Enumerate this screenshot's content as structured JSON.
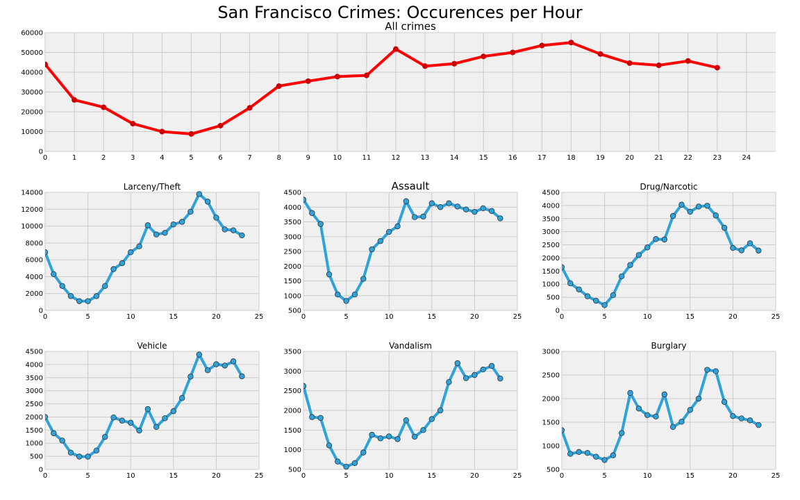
{
  "title": "San Francisco Crimes: Occurences per Hour",
  "colors": {
    "background": "#f0f0f0",
    "grid": "#cbcbcb",
    "all_crimes_line": "#ff0000",
    "all_crimes_marker": "#cc0000",
    "category_line": "#30a2da",
    "category_marker_edge": "#333333"
  },
  "chart_data": [
    {
      "type": "line",
      "title": "All crimes",
      "x": [
        0,
        1,
        2,
        3,
        4,
        5,
        6,
        7,
        8,
        9,
        10,
        11,
        12,
        13,
        14,
        15,
        16,
        17,
        18,
        19,
        20,
        21,
        22,
        23
      ],
      "values": [
        44000,
        26000,
        22300,
        14000,
        10000,
        8800,
        13000,
        22000,
        33000,
        35500,
        37800,
        38400,
        51700,
        43100,
        44300,
        48000,
        50000,
        53500,
        55000,
        49200,
        44600,
        43500,
        45700,
        42300
      ],
      "xlim": [
        0,
        25
      ],
      "ylim": [
        0,
        60000
      ],
      "xticks": [
        0,
        1,
        2,
        3,
        4,
        5,
        6,
        7,
        8,
        9,
        10,
        11,
        12,
        13,
        14,
        15,
        16,
        17,
        18,
        19,
        20,
        21,
        22,
        23,
        24
      ],
      "yticks": [
        0,
        10000,
        20000,
        30000,
        40000,
        50000,
        60000
      ],
      "grid": true
    },
    {
      "type": "line",
      "title": "Larceny/Theft",
      "x": [
        0,
        1,
        2,
        3,
        4,
        5,
        6,
        7,
        8,
        9,
        10,
        11,
        12,
        13,
        14,
        15,
        16,
        17,
        18,
        19,
        20,
        21,
        22,
        23
      ],
      "values": [
        6900,
        4300,
        2900,
        1700,
        1100,
        1100,
        1700,
        2900,
        4900,
        5600,
        6900,
        7600,
        10100,
        9000,
        9200,
        10200,
        10500,
        11700,
        13800,
        12900,
        11000,
        9600,
        9500,
        8900
      ],
      "xlim": [
        0,
        25
      ],
      "ylim": [
        0,
        14000
      ],
      "xticks": [
        0,
        5,
        10,
        15,
        20,
        25
      ],
      "yticks": [
        0,
        2000,
        4000,
        6000,
        8000,
        10000,
        12000,
        14000
      ],
      "grid": true
    },
    {
      "type": "line",
      "title": "Assault",
      "x": [
        0,
        1,
        2,
        3,
        4,
        5,
        6,
        7,
        8,
        9,
        10,
        11,
        12,
        13,
        14,
        15,
        16,
        17,
        18,
        19,
        20,
        21,
        22,
        23
      ],
      "values": [
        4250,
        3800,
        3430,
        1720,
        1040,
        820,
        1040,
        1570,
        2570,
        2850,
        3160,
        3350,
        4200,
        3660,
        3680,
        4130,
        4000,
        4130,
        4020,
        3920,
        3840,
        3960,
        3870,
        3620
      ],
      "xlim": [
        0,
        25
      ],
      "ylim": [
        500,
        4500
      ],
      "xticks": [
        0,
        5,
        10,
        15,
        20,
        25
      ],
      "yticks": [
        500,
        1000,
        1500,
        2000,
        2500,
        3000,
        3500,
        4000,
        4500
      ],
      "grid": true
    },
    {
      "type": "line",
      "title": "Drug/Narcotic",
      "x": [
        0,
        1,
        2,
        3,
        4,
        5,
        6,
        7,
        8,
        9,
        10,
        11,
        12,
        13,
        14,
        15,
        16,
        17,
        18,
        19,
        20,
        21,
        22,
        23
      ],
      "values": [
        1650,
        1030,
        800,
        540,
        370,
        200,
        580,
        1300,
        1730,
        2110,
        2400,
        2720,
        2700,
        3600,
        4030,
        3760,
        3960,
        3990,
        3620,
        3150,
        2380,
        2290,
        2560,
        2280
      ],
      "xlim": [
        0,
        25
      ],
      "ylim": [
        0,
        4500
      ],
      "xticks": [
        0,
        5,
        10,
        15,
        20,
        25
      ],
      "yticks": [
        0,
        500,
        1000,
        1500,
        2000,
        2500,
        3000,
        3500,
        4000,
        4500
      ],
      "grid": true
    },
    {
      "type": "line",
      "title": "Vehicle",
      "x": [
        0,
        1,
        2,
        3,
        4,
        5,
        6,
        7,
        8,
        9,
        10,
        11,
        12,
        13,
        14,
        15,
        16,
        17,
        18,
        19,
        20,
        21,
        22,
        23
      ],
      "values": [
        2000,
        1380,
        1100,
        640,
        490,
        490,
        720,
        1240,
        1980,
        1860,
        1780,
        1480,
        2300,
        1620,
        1950,
        2220,
        2720,
        3540,
        4380,
        3780,
        4010,
        3960,
        4120,
        3550
      ],
      "xlim": [
        0,
        25
      ],
      "ylim": [
        0,
        4500
      ],
      "xticks": [
        0,
        5,
        10,
        15,
        20,
        25
      ],
      "yticks": [
        0,
        500,
        1000,
        1500,
        2000,
        2500,
        3000,
        3500,
        4000,
        4500
      ],
      "grid": true
    },
    {
      "type": "line",
      "title": "Vandalism",
      "x": [
        0,
        1,
        2,
        3,
        4,
        5,
        6,
        7,
        8,
        9,
        10,
        11,
        12,
        13,
        14,
        15,
        16,
        17,
        18,
        19,
        20,
        21,
        22,
        23
      ],
      "values": [
        2620,
        1830,
        1810,
        1110,
        700,
        570,
        660,
        930,
        1380,
        1290,
        1340,
        1270,
        1750,
        1330,
        1500,
        1780,
        2000,
        2720,
        3200,
        2820,
        2900,
        3040,
        3130,
        2810
      ],
      "xlim": [
        0,
        25
      ],
      "ylim": [
        500,
        3500
      ],
      "xticks": [
        0,
        5,
        10,
        15,
        20,
        25
      ],
      "yticks": [
        500,
        1000,
        1500,
        2000,
        2500,
        3000,
        3500
      ],
      "grid": true
    },
    {
      "type": "line",
      "title": "Burglary",
      "x": [
        0,
        1,
        2,
        3,
        4,
        5,
        6,
        7,
        8,
        9,
        10,
        11,
        12,
        13,
        14,
        15,
        16,
        17,
        18,
        19,
        20,
        21,
        22,
        23
      ],
      "values": [
        1330,
        830,
        870,
        850,
        770,
        700,
        800,
        1270,
        2120,
        1790,
        1650,
        1620,
        2090,
        1400,
        1510,
        1760,
        2000,
        2610,
        2580,
        1930,
        1630,
        1580,
        1540,
        1440
      ],
      "xlim": [
        0,
        25
      ],
      "ylim": [
        500,
        3000
      ],
      "xticks": [
        0,
        5,
        10,
        15,
        20,
        25
      ],
      "yticks": [
        500,
        1000,
        1500,
        2000,
        2500,
        3000
      ],
      "grid": true
    }
  ]
}
